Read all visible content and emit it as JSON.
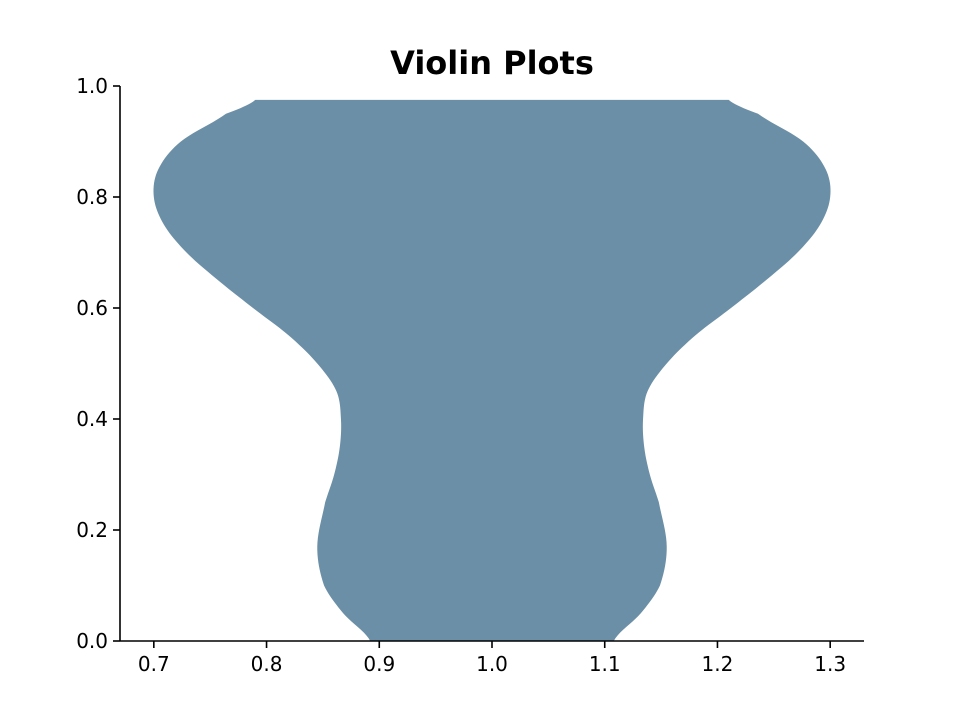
{
  "chart_data": {
    "type": "violin",
    "title": "Violin Plots",
    "xlabel": "",
    "ylabel": "",
    "xlim": [
      0.67,
      1.33
    ],
    "ylim": [
      0.0,
      1.0
    ],
    "x_ticks": [
      0.7,
      0.8,
      0.9,
      1.0,
      1.1,
      1.2,
      1.3
    ],
    "y_ticks": [
      0.0,
      0.2,
      0.4,
      0.6,
      0.8,
      1.0
    ],
    "x_tick_labels": [
      "0.7",
      "0.8",
      "0.9",
      "1.0",
      "1.1",
      "1.2",
      "1.3"
    ],
    "y_tick_labels": [
      "0.0",
      "0.2",
      "0.4",
      "0.6",
      "0.8",
      "1.0"
    ],
    "grid": false,
    "spines": [
      "left",
      "bottom"
    ],
    "series": [
      {
        "position": 1.0,
        "color": "#6b8fa6",
        "y_min": 0.0,
        "y_max": 0.975,
        "profile": [
          [
            0.0,
            0.108
          ],
          [
            0.05,
            0.132
          ],
          [
            0.1,
            0.149
          ],
          [
            0.17,
            0.155
          ],
          [
            0.25,
            0.148
          ],
          [
            0.3,
            0.14
          ],
          [
            0.35,
            0.135
          ],
          [
            0.4,
            0.134
          ],
          [
            0.45,
            0.138
          ],
          [
            0.5,
            0.155
          ],
          [
            0.55,
            0.18
          ],
          [
            0.6,
            0.212
          ],
          [
            0.65,
            0.243
          ],
          [
            0.7,
            0.271
          ],
          [
            0.75,
            0.291
          ],
          [
            0.8,
            0.3
          ],
          [
            0.85,
            0.296
          ],
          [
            0.9,
            0.276
          ],
          [
            0.95,
            0.236
          ],
          [
            0.975,
            0.21
          ]
        ]
      }
    ]
  }
}
